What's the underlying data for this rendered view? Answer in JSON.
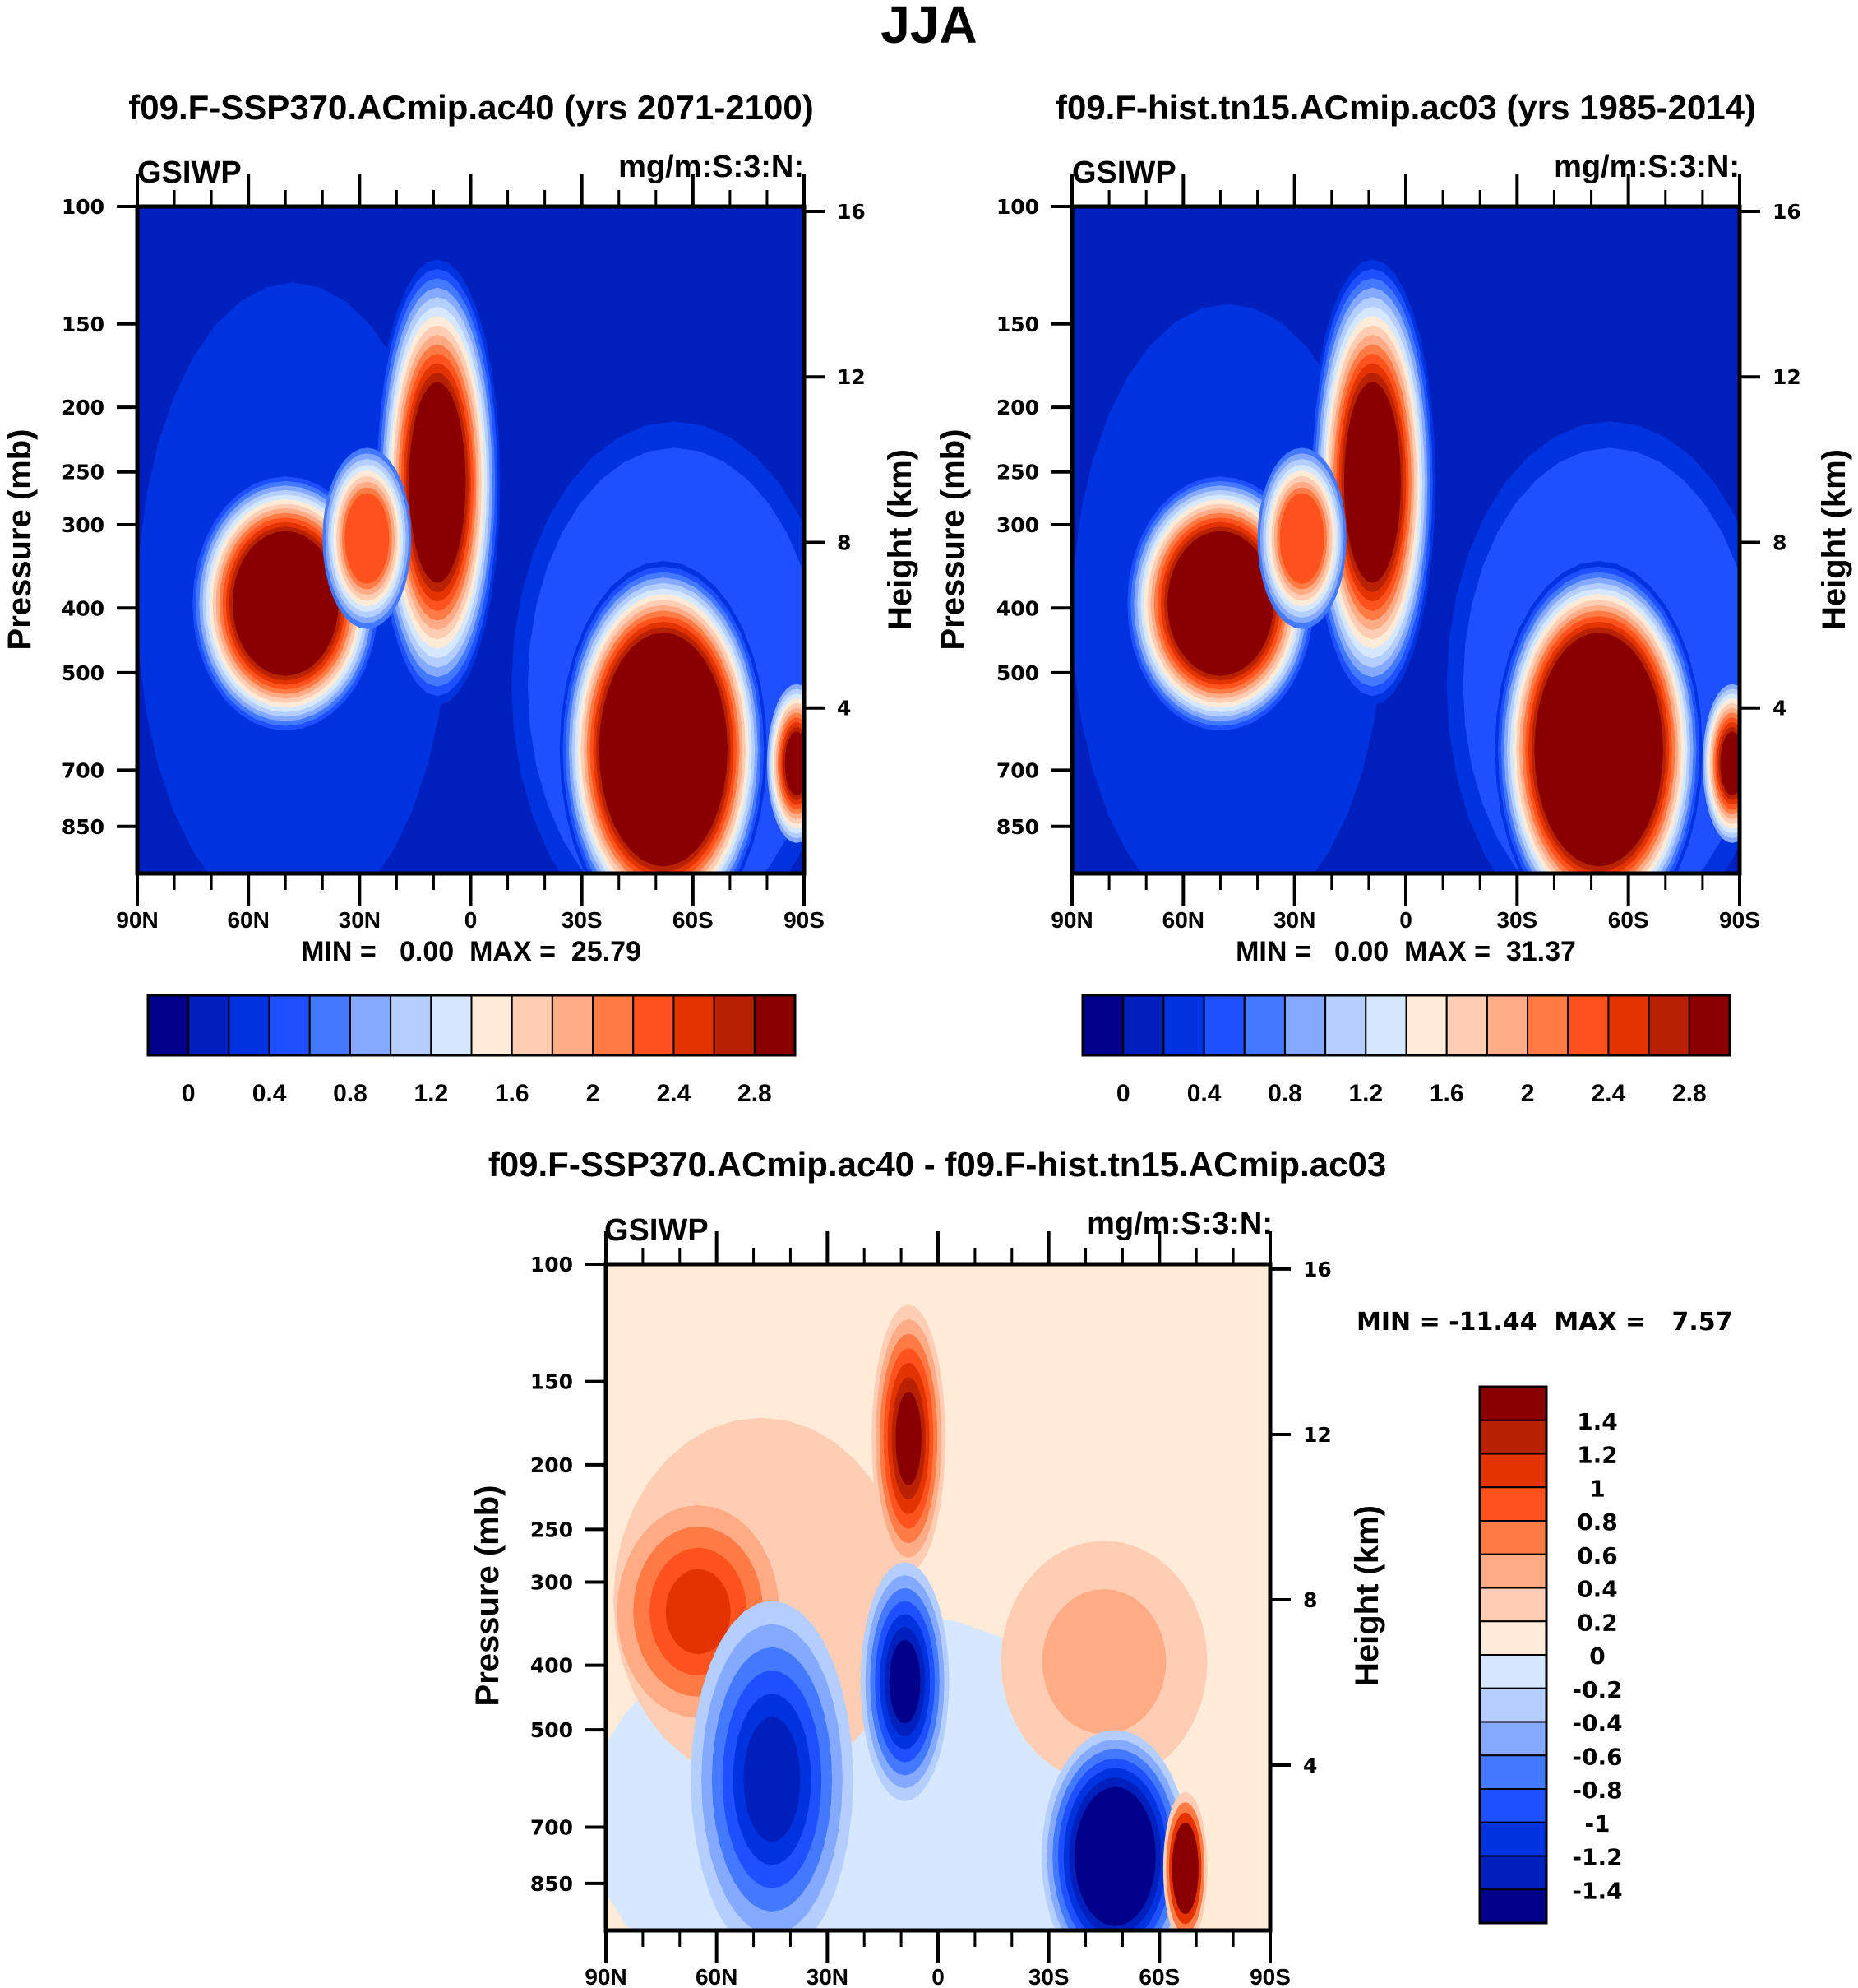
{
  "figure": {
    "title": "JJA"
  },
  "chart_data": [
    {
      "type": "heatmap",
      "panel": "top-left",
      "title": "f09.F-SSP370.ACmip.ac40 (yrs 2071-2100)",
      "variable": "GSIWP",
      "units": "mg/m:S:3:N:",
      "xlabel": "",
      "ylabel": "Pressure (mb)",
      "ylabel_right": "Height (km)",
      "x_ticks": [
        "90N",
        "60N",
        "30N",
        "0",
        "30S",
        "60S",
        "90S"
      ],
      "x_range": [
        90,
        -90
      ],
      "y_ticks": [
        "100",
        "150",
        "200",
        "250",
        "300",
        "400",
        "500",
        "700",
        "850"
      ],
      "y_range_mb": [
        100,
        1000
      ],
      "y_right_ticks": [
        "16",
        "12",
        "8",
        "4"
      ],
      "stats": "MIN =   0.00  MAX =  25.79",
      "min": 0.0,
      "max": 25.79,
      "colorbar": {
        "orientation": "horizontal",
        "levels": [
          0,
          0.2,
          0.4,
          0.6,
          0.8,
          1.0,
          1.2,
          1.4,
          1.6,
          1.8,
          2.0,
          2.2,
          2.4,
          2.6,
          2.8
        ],
        "tick_labels": [
          "0",
          "0.4",
          "0.8",
          "1.2",
          "1.6",
          "2",
          "2.4",
          "2.8"
        ],
        "colors": [
          "#00008a",
          "#0020bd",
          "#0033e0",
          "#1e50ff",
          "#4379ff",
          "#85a9ff",
          "#b4ceff",
          "#d6e8ff",
          "#ffebd7",
          "#ffcdb3",
          "#ffab85",
          "#ff7b45",
          "#ff521d",
          "#e23301",
          "#b82102",
          "#8a0000"
        ]
      },
      "features": [
        {
          "name": "NH midlatitude maximum",
          "lat_center": 50,
          "p_center": 400,
          "level": "above 2.8"
        },
        {
          "name": "Tropical maximum",
          "lat_center": 8,
          "p_center": 280,
          "level": "above 2.8"
        },
        {
          "name": "SH high-latitude maximum",
          "lat_center": -55,
          "p_center": 650,
          "level": "above 2.8"
        }
      ]
    },
    {
      "type": "heatmap",
      "panel": "top-right",
      "title": "f09.F-hist.tn15.ACmip.ac03 (yrs 1985-2014)",
      "variable": "GSIWP",
      "units": "mg/m:S:3:N:",
      "xlabel": "",
      "ylabel": "Pressure (mb)",
      "ylabel_right": "Height (km)",
      "x_ticks": [
        "90N",
        "60N",
        "30N",
        "0",
        "30S",
        "60S",
        "90S"
      ],
      "x_range": [
        90,
        -90
      ],
      "y_ticks": [
        "100",
        "150",
        "200",
        "250",
        "300",
        "400",
        "500",
        "700",
        "850"
      ],
      "y_range_mb": [
        100,
        1000
      ],
      "y_right_ticks": [
        "16",
        "12",
        "8",
        "4"
      ],
      "stats": "MIN =   0.00  MAX =  31.37",
      "min": 0.0,
      "max": 31.37,
      "colorbar": {
        "orientation": "horizontal",
        "levels": [
          0,
          0.2,
          0.4,
          0.6,
          0.8,
          1.0,
          1.2,
          1.4,
          1.6,
          1.8,
          2.0,
          2.2,
          2.4,
          2.6,
          2.8
        ],
        "tick_labels": [
          "0",
          "0.4",
          "0.8",
          "1.2",
          "1.6",
          "2",
          "2.4",
          "2.8"
        ],
        "colors": [
          "#00008a",
          "#0020bd",
          "#0033e0",
          "#1e50ff",
          "#4379ff",
          "#85a9ff",
          "#b4ceff",
          "#d6e8ff",
          "#ffebd7",
          "#ffcdb3",
          "#ffab85",
          "#ff7b45",
          "#ff521d",
          "#e23301",
          "#b82102",
          "#8a0000"
        ]
      },
      "features": [
        {
          "name": "NH midlatitude maximum",
          "lat_center": 50,
          "p_center": 400,
          "level": "above 2.8"
        },
        {
          "name": "Tropical maximum",
          "lat_center": 8,
          "p_center": 300,
          "level": "above 2.8"
        },
        {
          "name": "SH high-latitude maximum",
          "lat_center": -55,
          "p_center": 650,
          "level": "above 2.8"
        }
      ]
    },
    {
      "type": "heatmap",
      "panel": "bottom",
      "title": "f09.F-SSP370.ACmip.ac40 - f09.F-hist.tn15.ACmip.ac03",
      "variable": "GSIWP",
      "units": "mg/m:S:3:N:",
      "xlabel": "",
      "ylabel": "Pressure (mb)",
      "ylabel_right": "Height (km)",
      "x_ticks": [
        "90N",
        "60N",
        "30N",
        "0",
        "30S",
        "60S",
        "90S"
      ],
      "x_range": [
        90,
        -90
      ],
      "y_ticks": [
        "100",
        "150",
        "200",
        "250",
        "300",
        "400",
        "500",
        "700",
        "850"
      ],
      "y_range_mb": [
        100,
        1000
      ],
      "y_right_ticks": [
        "16",
        "12",
        "8",
        "4"
      ],
      "stats": "MIN = -11.44  MAX =   7.57",
      "min": -11.44,
      "max": 7.57,
      "colorbar": {
        "orientation": "vertical",
        "levels": [
          -1.4,
          -1.2,
          -1.0,
          -0.8,
          -0.6,
          -0.4,
          -0.2,
          0,
          0.2,
          0.4,
          0.6,
          0.8,
          1.0,
          1.2,
          1.4
        ],
        "tick_labels": [
          "1.4",
          "1.2",
          "1",
          "0.8",
          "0.6",
          "0.4",
          "0.2",
          "0",
          "-0.2",
          "-0.4",
          "-0.6",
          "-0.8",
          "-1",
          "-1.2",
          "-1.4"
        ],
        "colors": [
          "#8a0000",
          "#b82102",
          "#e23301",
          "#ff521d",
          "#ff7b45",
          "#ffab85",
          "#ffcdb3",
          "#ffebd7",
          "#d6e8ff",
          "#b4ceff",
          "#85a9ff",
          "#4379ff",
          "#1e50ff",
          "#0033e0",
          "#0020bd",
          "#00008a"
        ]
      },
      "features": [
        {
          "name": "Tropical upper increase",
          "lat_center": 8,
          "p_center": 200,
          "level": "above 1.4"
        },
        {
          "name": "NH upper increase",
          "lat_center": 65,
          "p_center": 320,
          "level": "0.8 to 1.0"
        },
        {
          "name": "Tropical mid decrease",
          "lat_center": 10,
          "p_center": 380,
          "level": "below -1.4"
        },
        {
          "name": "SH high-latitude decrease",
          "lat_center": -48,
          "p_center": 750,
          "level": "below -1.4"
        },
        {
          "name": "SH polar increase",
          "lat_center": -65,
          "p_center": 780,
          "level": "above 1.4"
        }
      ]
    }
  ]
}
